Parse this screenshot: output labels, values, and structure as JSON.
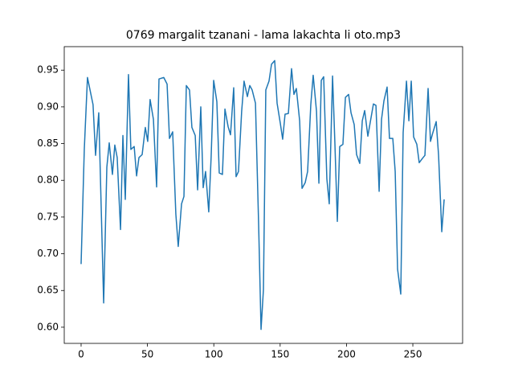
{
  "chart_data": {
    "type": "line",
    "title": "0769 margalit tzanani - lama lakachta li oto.mp3",
    "x": [
      0,
      2.4,
      4.8,
      9,
      10.9,
      13.3,
      17,
      19.4,
      21.2,
      23.6,
      25.4,
      27.2,
      29.7,
      31.5,
      33.3,
      35.7,
      37.5,
      40,
      41.8,
      43.6,
      46,
      48.4,
      50.2,
      52,
      54.5,
      56.9,
      58.7,
      62.3,
      64.8,
      66.6,
      69,
      71.4,
      73.2,
      75.7,
      77.5,
      79.3,
      81.7,
      83.5,
      86,
      87.8,
      90.2,
      92,
      93.8,
      96.2,
      98,
      99.9,
      102.3,
      104.1,
      106.5,
      108.4,
      110.8,
      112.6,
      115,
      116.8,
      118.6,
      121,
      122.8,
      125.3,
      127.1,
      128.9,
      131.4,
      133.8,
      135.6,
      137.4,
      139.2,
      141.6,
      143.5,
      145.9,
      147.7,
      150.1,
      151.9,
      153.7,
      156.2,
      158.6,
      160.4,
      162.2,
      164.7,
      166.5,
      168.9,
      170.7,
      173.1,
      174.9,
      177.4,
      179.2,
      181,
      182.8,
      185.2,
      187,
      189.5,
      191.3,
      193.1,
      194.9,
      197.3,
      199.2,
      201.6,
      203.4,
      205.8,
      207.6,
      210,
      211.9,
      213.7,
      216.1,
      217.9,
      220.3,
      222.2,
      224.6,
      226.4,
      228.2,
      230.6,
      232.4,
      234.9,
      236.7,
      238.5,
      240.9,
      242.7,
      245.2,
      247,
      248.8,
      250.6,
      253,
      254.8,
      257.3,
      259.1,
      261.5,
      263.3,
      265.1,
      267.6,
      269.4,
      271.8,
      273.6
    ],
    "series": [
      {
        "color": "#1f77b4",
        "values": [
          0.686,
          0.842,
          0.94,
          0.903,
          0.834,
          0.892,
          0.633,
          0.818,
          0.851,
          0.808,
          0.848,
          0.831,
          0.733,
          0.861,
          0.774,
          0.944,
          0.842,
          0.846,
          0.806,
          0.831,
          0.835,
          0.872,
          0.853,
          0.91,
          0.883,
          0.791,
          0.938,
          0.94,
          0.931,
          0.857,
          0.866,
          0.754,
          0.71,
          0.768,
          0.778,
          0.929,
          0.923,
          0.872,
          0.861,
          0.787,
          0.9,
          0.79,
          0.812,
          0.757,
          0.832,
          0.936,
          0.907,
          0.81,
          0.808,
          0.897,
          0.873,
          0.862,
          0.926,
          0.805,
          0.812,
          0.894,
          0.935,
          0.914,
          0.929,
          0.923,
          0.905,
          0.739,
          0.597,
          0.651,
          0.923,
          0.935,
          0.958,
          0.963,
          0.905,
          0.878,
          0.856,
          0.89,
          0.891,
          0.952,
          0.917,
          0.925,
          0.881,
          0.789,
          0.797,
          0.812,
          0.903,
          0.943,
          0.894,
          0.796,
          0.936,
          0.941,
          0.802,
          0.768,
          0.942,
          0.848,
          0.744,
          0.846,
          0.849,
          0.913,
          0.917,
          0.892,
          0.876,
          0.835,
          0.823,
          0.881,
          0.895,
          0.86,
          0.879,
          0.904,
          0.902,
          0.785,
          0.883,
          0.908,
          0.927,
          0.857,
          0.857,
          0.812,
          0.679,
          0.645,
          0.865,
          0.935,
          0.881,
          0.935,
          0.859,
          0.849,
          0.824,
          0.83,
          0.834,
          0.925,
          0.853,
          0.865,
          0.88,
          0.834,
          0.73,
          0.774
        ]
      }
    ],
    "xlim": [
      -12.7,
      287.5
    ],
    "xticks": [
      0,
      50,
      100,
      150,
      200,
      250
    ],
    "ylim": [
      0.578,
      0.982
    ],
    "yticks": [
      {
        "value": 0.6,
        "label": "0.60"
      },
      0.65,
      {
        "value": 0.7,
        "label": "0.70"
      },
      0.75,
      {
        "value": 0.8,
        "label": "0.80"
      },
      0.85,
      {
        "value": 0.9,
        "label": "0.90"
      },
      0.95
    ]
  }
}
